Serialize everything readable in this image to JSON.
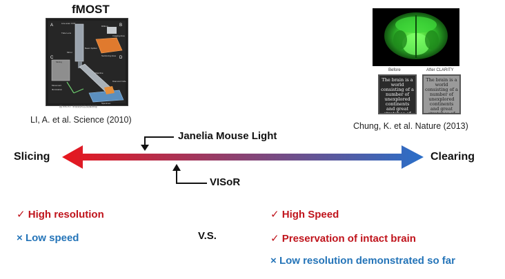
{
  "left_method": {
    "title": "fMOST",
    "figure_labels": [
      "A",
      "B",
      "C",
      "D",
      "Line-scan CCD",
      "Tube Lens",
      "Ribbon",
      "Imaging Area",
      "Beam Splitter",
      "Sectioning Area",
      "Mirror",
      "Objective",
      "Diamond Knife",
      "Specimen",
      "Slicing",
      "Movement",
      "Illumination"
    ],
    "figure_caption": "图 fMOST 系统结构及成像原理",
    "citation": "LI, A. et al. Science (2010)"
  },
  "right_method": {
    "panel_before_label": "Before",
    "panel_after_label": "After CLARITY",
    "panel_text": "The brain is a world consisting of a number of unexplored continents and great stretches of unknown territory.",
    "citation": "Chung, K. et al. Nature (2013)"
  },
  "axis": {
    "left_label": "Slicing",
    "right_label": "Clearing",
    "gradient_start": "#e8161d",
    "gradient_end": "#2a6fc9"
  },
  "markers": {
    "janelia": "Janelia Mouse Light",
    "visor": "VISoR"
  },
  "pros_cons_left": [
    {
      "icon": "check-icon",
      "symbol": "✓",
      "text": "High resolution",
      "color": "#c0141c"
    },
    {
      "icon": "cross-icon",
      "symbol": "×",
      "text": "Low speed",
      "color": "#2474b8"
    }
  ],
  "vs_label": "V.S.",
  "pros_cons_right": [
    {
      "icon": "check-icon",
      "symbol": "✓",
      "text": "High Speed",
      "color": "#c0141c"
    },
    {
      "icon": "check-icon",
      "symbol": "✓",
      "text": "Preservation of intact brain",
      "color": "#c0141c"
    },
    {
      "icon": "cross-icon",
      "symbol": "×",
      "text": "Low resolution demonstrated so far",
      "color": "#2474b8"
    }
  ]
}
